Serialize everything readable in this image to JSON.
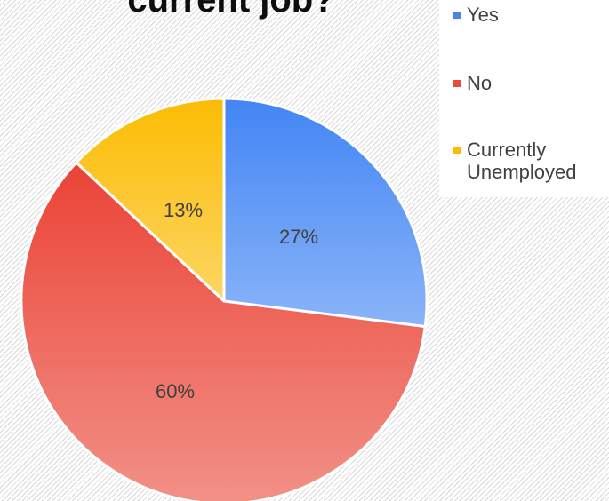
{
  "chart_data": {
    "type": "pie",
    "title": "current job?",
    "slices": [
      {
        "name": "Yes",
        "value": 27,
        "label": "27%",
        "color": "#4a86e8"
      },
      {
        "name": "No",
        "value": 60,
        "label": "60%",
        "color": "#e84c3d"
      },
      {
        "name": "Currently Unemployed",
        "value": 13,
        "label": "13%",
        "color": "#fbbc04"
      }
    ],
    "legend": {
      "position": "top-right",
      "items": [
        {
          "label": "Yes",
          "color": "#4a86e8"
        },
        {
          "label": "No",
          "color": "#e84c3d"
        },
        {
          "label": "Currently Unemployed",
          "color": "#fbbc04"
        }
      ]
    }
  }
}
